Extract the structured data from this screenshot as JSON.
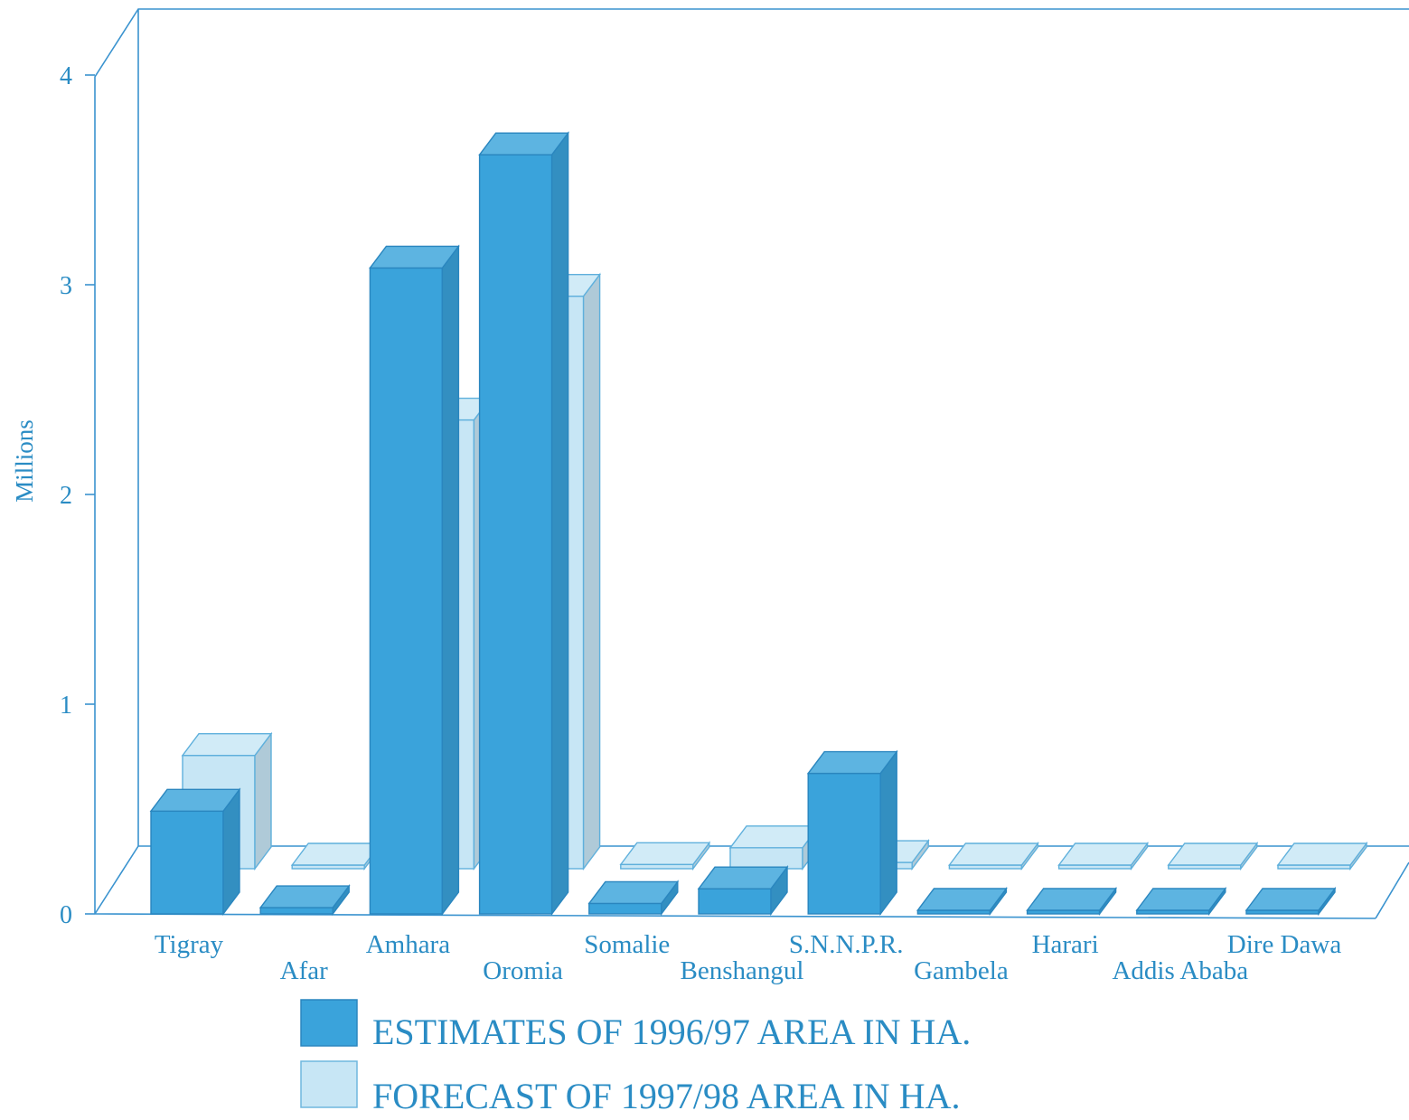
{
  "chart_data": {
    "type": "bar",
    "title": "",
    "xlabel": "",
    "ylabel": "Millions",
    "ylim": [
      0,
      4
    ],
    "yticks": [
      "0",
      "1",
      "2",
      "3",
      "4"
    ],
    "categories": [
      "Tigray",
      "Afar",
      "Amhara",
      "Oromia",
      "Somalie",
      "Benshangul",
      "S.N.N.P.R.",
      "Gambela",
      "Harari",
      "Addis Ababa",
      "Dire Dawa"
    ],
    "series": [
      {
        "name": "ESTIMATES OF 1996/97 AREA IN HA.",
        "values": [
          0.49,
          0.03,
          3.08,
          3.62,
          0.05,
          0.12,
          0.67,
          0.01,
          0.01,
          0.01,
          0.01
        ],
        "color": "#3aa3db"
      },
      {
        "name": "FORECAST OF 1997/98 AREA IN HA.",
        "values": [
          0.54,
          0.01,
          2.14,
          2.73,
          0.02,
          0.1,
          0.03,
          0.01,
          0.01,
          0.01,
          0.01
        ],
        "color": "#c7e6f5"
      }
    ],
    "grid": false,
    "legend_position": "bottom",
    "style": "3d"
  }
}
